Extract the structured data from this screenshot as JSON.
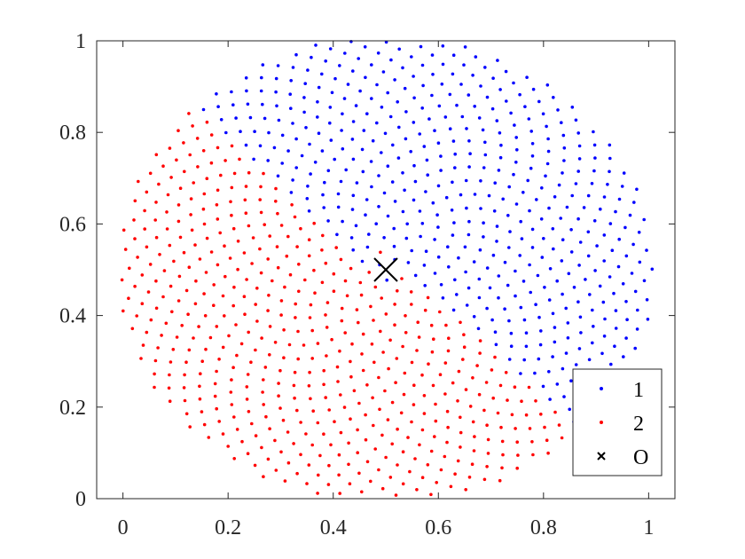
{
  "chart_data": {
    "type": "scatter",
    "title": "",
    "xlabel": "",
    "ylabel": "",
    "xlim": [
      -0.05,
      1.05
    ],
    "ylim": [
      0,
      1
    ],
    "xticks": [
      "0",
      "0.2",
      "0.4",
      "0.6",
      "0.8",
      "1"
    ],
    "yticks": [
      "0",
      "0.2",
      "0.4",
      "0.6",
      "0.8",
      "1"
    ],
    "grid": false,
    "legend_position": "bottom-right",
    "pattern": "sunflower spiral of points centered at (0.5, 0.5), radius about 0.5; series 1 occupies the upper-right half, series 2 the lower-left half",
    "center": [
      0.5,
      0.5
    ],
    "radius": 0.51,
    "point_count": 1000,
    "series": [
      {
        "name": "1",
        "color": "#0000ff",
        "marker": "dot",
        "region": "upper-right"
      },
      {
        "name": "2",
        "color": "#ff0000",
        "marker": "dot",
        "region": "lower-left"
      },
      {
        "name": "O",
        "color": "#000000",
        "marker": "x",
        "x": [
          0.5
        ],
        "y": [
          0.5
        ]
      }
    ]
  }
}
